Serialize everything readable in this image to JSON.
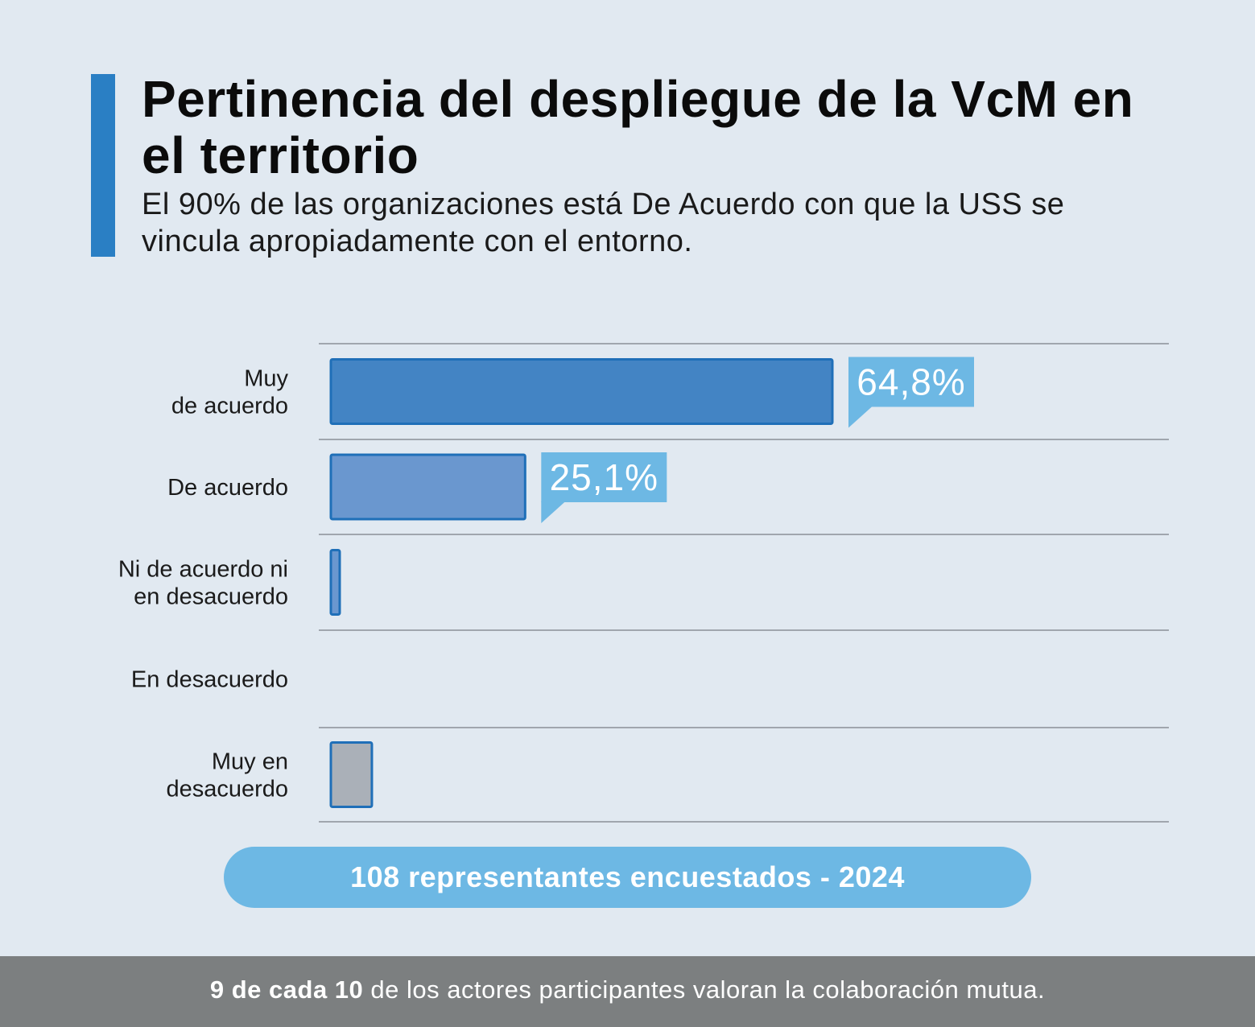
{
  "header": {
    "title": "Pertinencia del despliegue de la VcM en el territorio",
    "subtitle": "El 90% de las organizaciones está De Acuerdo con que la USS se vincula apropiadamente con el entorno."
  },
  "colors": {
    "accent": "#2a7fc4",
    "bar_strong": "#4384c4",
    "bar_medium": "#6a97cf",
    "bar_outline": "#1f6fb8",
    "bar_grey": "#aab0b8",
    "callout": "#6db8e4",
    "background": "#e1e9f1",
    "footer_bg": "#7c7f80"
  },
  "chart_data": {
    "type": "bar",
    "orientation": "horizontal",
    "categories": [
      "Muy\nde acuerdo",
      "De acuerdo",
      "Ni de acuerdo ni\nen desacuerdo",
      "En desacuerdo",
      "Muy en\ndesacuerdo"
    ],
    "values": [
      64.8,
      25.1,
      0.9,
      0,
      5.3
    ],
    "data_labels": [
      "64,8%",
      "25,1%",
      "",
      "",
      ""
    ],
    "title": "",
    "xlabel": "",
    "ylabel": "",
    "xlim": [
      0,
      100
    ],
    "grid": true
  },
  "sample_note": "108 representantes encuestados - 2024",
  "footer": {
    "bold": "9 de cada 10",
    "rest": " de los actores participantes valoran la colaboración mutua."
  }
}
